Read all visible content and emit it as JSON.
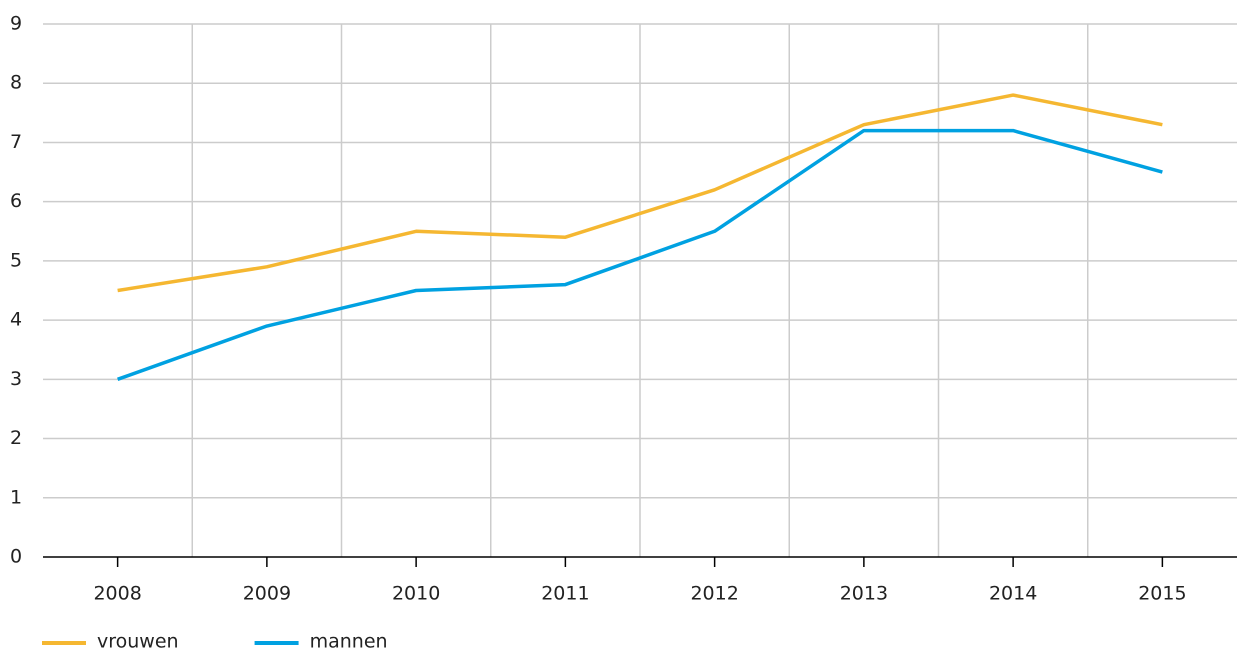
{
  "chart_data": {
    "type": "line",
    "categories": [
      "2008",
      "2009",
      "2010",
      "2011",
      "2012",
      "2013",
      "2014",
      "2015"
    ],
    "series": [
      {
        "name": "vrouwen",
        "color": "#f5b731",
        "values": [
          4.5,
          4.9,
          5.5,
          5.4,
          6.2,
          7.3,
          7.8,
          7.3
        ]
      },
      {
        "name": "mannen",
        "color": "#00a1e1",
        "values": [
          3.0,
          3.9,
          4.5,
          4.6,
          5.5,
          7.2,
          7.2,
          6.5
        ]
      }
    ],
    "ylim": [
      0,
      9
    ],
    "yticks": [
      0,
      1,
      2,
      3,
      4,
      5,
      6,
      7,
      8,
      9
    ],
    "grid": true,
    "legend": "bottom"
  }
}
